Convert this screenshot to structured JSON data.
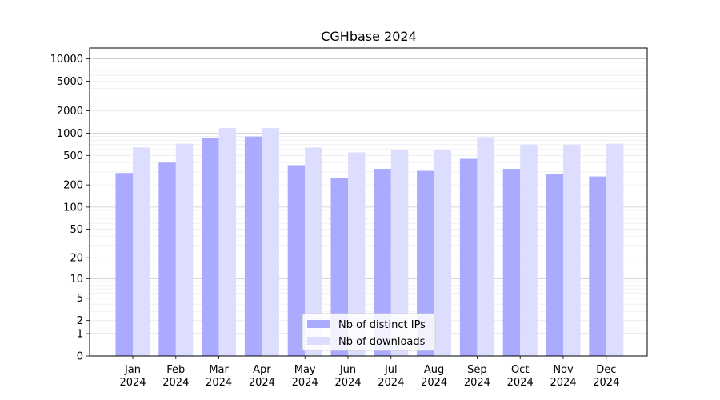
{
  "chart_data": {
    "type": "bar",
    "title": "CGHbase 2024",
    "xlabel": "",
    "ylabel": "",
    "yscale": "symlog",
    "ylim": [
      0,
      14000
    ],
    "y_ticks": [
      0,
      1,
      2,
      5,
      10,
      20,
      50,
      100,
      200,
      500,
      1000,
      2000,
      5000,
      10000
    ],
    "categories": [
      "Jan\n2024",
      "Feb\n2024",
      "Mar\n2024",
      "Apr\n2024",
      "May\n2024",
      "Jun\n2024",
      "Jul\n2024",
      "Aug\n2024",
      "Sep\n2024",
      "Oct\n2024",
      "Nov\n2024",
      "Dec\n2024"
    ],
    "series": [
      {
        "name": "Nb of distinct IPs",
        "color": "#aaaaff",
        "values": [
          290,
          400,
          850,
          900,
          370,
          250,
          330,
          310,
          450,
          330,
          280,
          260
        ]
      },
      {
        "name": "Nb of downloads",
        "color": "#ddddff",
        "values": [
          640,
          720,
          1170,
          1170,
          640,
          550,
          600,
          600,
          880,
          700,
          700,
          720
        ]
      }
    ],
    "grid": true,
    "legend_position": "lower-center"
  }
}
